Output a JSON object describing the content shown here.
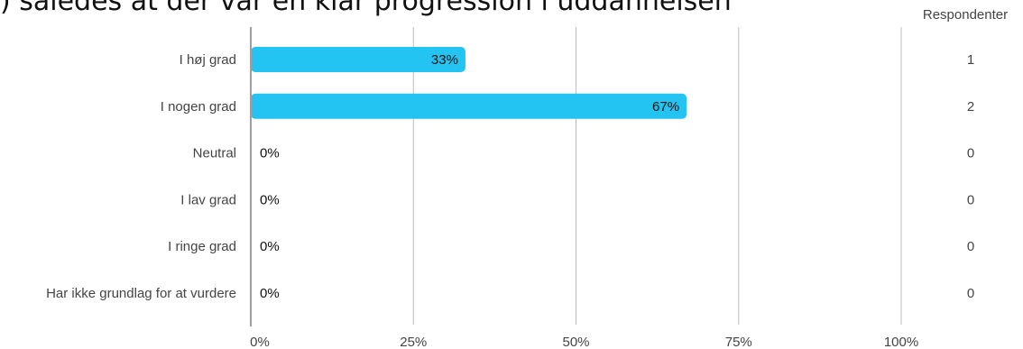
{
  "chart_data": {
    "type": "bar",
    "orientation": "horizontal",
    "title": ") således at der var en klar progression i uddannelsen",
    "categories": [
      "I høj grad",
      "I nogen grad",
      "Neutral",
      "I lav grad",
      "I ringe grad",
      "Har ikke grundlag for at vurdere"
    ],
    "values": [
      33,
      67,
      0,
      0,
      0,
      0
    ],
    "value_labels": [
      "33%",
      "67%",
      "0%",
      "0%",
      "0%",
      "0%"
    ],
    "respondents_header": "Respondenter",
    "respondents": [
      1,
      2,
      0,
      0,
      0,
      0
    ],
    "x_ticks": [
      "0%",
      "25%",
      "50%",
      "75%",
      "100%"
    ],
    "xlim": [
      0,
      100
    ],
    "grid": true,
    "colors": {
      "bar": "#23c3f2",
      "grid": "#bdbdbd",
      "axis": "#9e9e9e",
      "text": "#444444"
    }
  }
}
